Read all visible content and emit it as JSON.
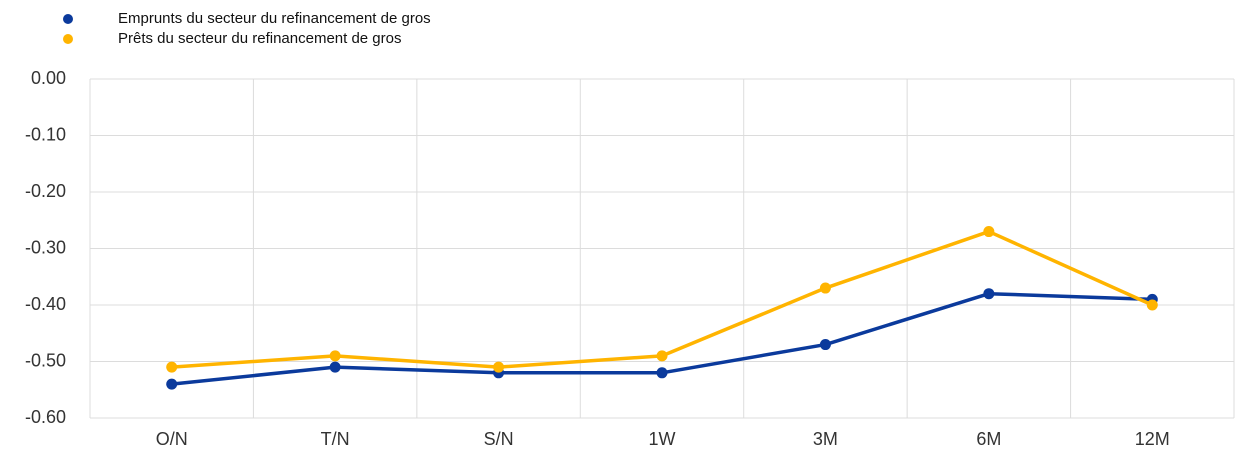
{
  "chart_data": {
    "type": "line",
    "categories": [
      "O/N",
      "T/N",
      "S/N",
      "1W",
      "3M",
      "6M",
      "12M"
    ],
    "series": [
      {
        "name": "Emprunts du secteur du refinancement de gros",
        "color": "#0b3a9c",
        "values": [
          -0.54,
          -0.51,
          -0.52,
          -0.52,
          -0.47,
          -0.38,
          -0.39
        ]
      },
      {
        "name": "Prêts du secteur du refinancement de gros",
        "color": "#ffb400",
        "values": [
          -0.51,
          -0.49,
          -0.51,
          -0.49,
          -0.37,
          -0.27,
          -0.4
        ]
      }
    ],
    "ylim": [
      -0.6,
      0
    ],
    "yticks": [
      {
        "value": 0,
        "label": "0.00"
      },
      {
        "value": -0.1,
        "label": "-0.10"
      },
      {
        "value": -0.2,
        "label": "-0.20"
      },
      {
        "value": -0.3,
        "label": "-0.30"
      },
      {
        "value": -0.4,
        "label": "-0.40"
      },
      {
        "value": -0.5,
        "label": "-0.50"
      },
      {
        "value": -0.6,
        "label": "-0.60"
      }
    ],
    "grid": true,
    "legend": "top-left"
  }
}
